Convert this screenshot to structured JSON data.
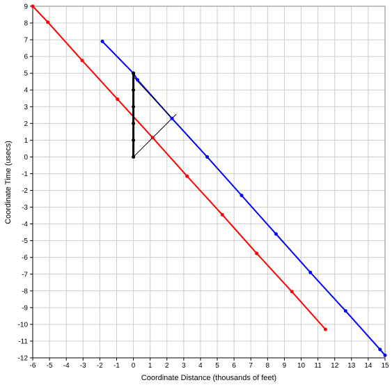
{
  "chart_data": {
    "type": "line",
    "title": "",
    "xlabel": "Coordinate Distance (thousands of feet)",
    "ylabel": "Coordinate Time (usecs)",
    "xlim": [
      -6,
      15
    ],
    "ylim": [
      -12,
      9
    ],
    "xticks": [
      -6,
      -5,
      -4,
      -3,
      -2,
      -1,
      0,
      1,
      2,
      3,
      4,
      5,
      6,
      7,
      8,
      9,
      10,
      11,
      12,
      13,
      14,
      15
    ],
    "yticks": [
      -12,
      -11,
      -10,
      -9,
      -8,
      -7,
      -6,
      -5,
      -4,
      -3,
      -2,
      -1,
      0,
      1,
      2,
      3,
      4,
      5,
      6,
      7,
      8,
      9
    ],
    "grid": true,
    "legend": "none",
    "series": [
      {
        "color": "#ff0000",
        "line_width": 2,
        "marker": "dot",
        "points": [
          [
            -6,
            9
          ],
          [
            -5.1,
            8.05
          ],
          [
            -3.05,
            5.76
          ],
          [
            -0.95,
            3.45
          ],
          [
            1.15,
            1.15
          ],
          [
            3.2,
            -1.15
          ],
          [
            5.3,
            -3.45
          ],
          [
            7.35,
            -5.76
          ],
          [
            9.45,
            -8.05
          ],
          [
            11.45,
            -10.3
          ]
        ]
      },
      {
        "color": "#0000ff",
        "line_width": 2,
        "marker": "dot",
        "points": [
          [
            -1.85,
            6.9
          ],
          [
            0,
            5
          ],
          [
            0.25,
            4.6
          ],
          [
            2.3,
            2.3
          ],
          [
            4.4,
            0
          ],
          [
            6.45,
            -2.3
          ],
          [
            8.5,
            -4.6
          ],
          [
            10.55,
            -6.9
          ],
          [
            12.65,
            -9.2
          ],
          [
            14.7,
            -11.5
          ],
          [
            15,
            -11.85
          ]
        ]
      },
      {
        "color": "#000000",
        "line_width": 3,
        "marker": "dot",
        "points": [
          [
            0,
            0
          ],
          [
            0,
            1
          ],
          [
            0,
            2
          ],
          [
            0,
            3
          ],
          [
            0,
            4
          ],
          [
            0,
            5
          ]
        ]
      },
      {
        "color": "#000000",
        "line_width": 1,
        "marker": "none",
        "points": [
          [
            0,
            0
          ],
          [
            2.55,
            2.55
          ]
        ]
      },
      {
        "color": "#000000",
        "line_width": 1,
        "marker": "none",
        "points": [
          [
            0,
            4.8
          ],
          [
            2.3,
            2.3
          ]
        ]
      }
    ]
  }
}
